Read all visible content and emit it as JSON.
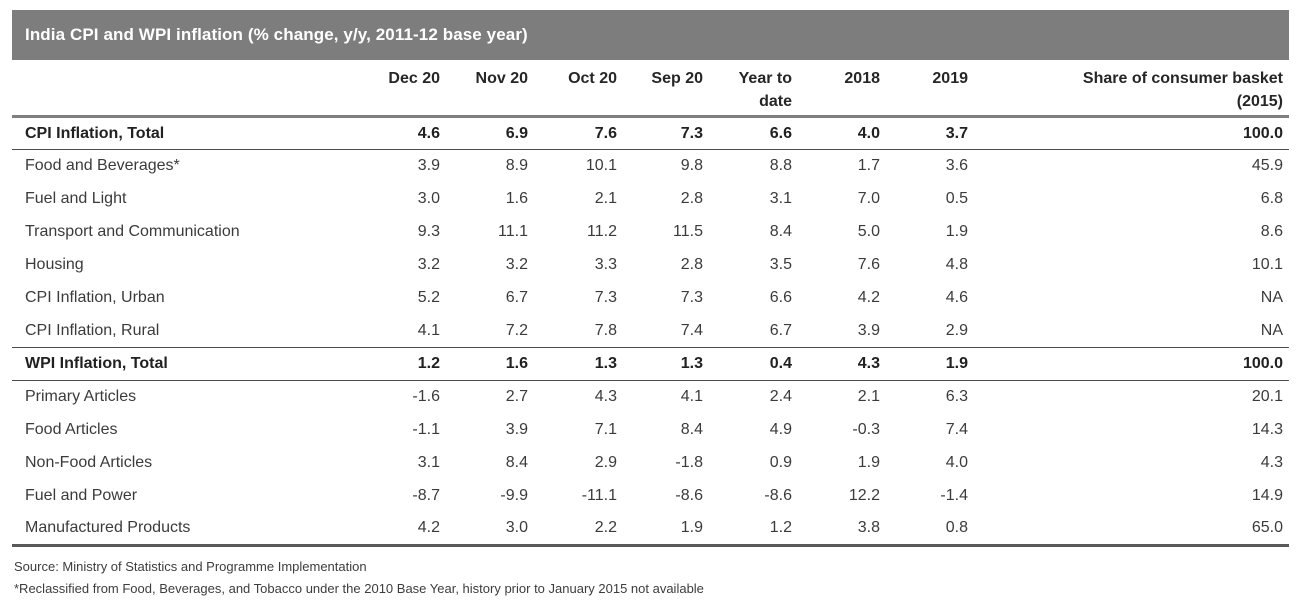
{
  "title_bar": {
    "title": "India CPI and WPI inflation (% change, y/y, 2011-12 base year)",
    "bg_color": "#7d7d7d",
    "text_color": "#ffffff"
  },
  "chart_data": {
    "type": "table",
    "title": "India CPI and WPI inflation (% change, y/y, 2011-12 base year)",
    "columns": [
      {
        "line1": "Dec 20",
        "line2": ""
      },
      {
        "line1": "Nov 20",
        "line2": ""
      },
      {
        "line1": "Oct 20",
        "line2": ""
      },
      {
        "line1": "Sep 20",
        "line2": ""
      },
      {
        "line1": "Year to",
        "line2": "date"
      },
      {
        "line1": "2018",
        "line2": ""
      },
      {
        "line1": "2019",
        "line2": ""
      },
      {
        "line1": "Share of consumer basket",
        "line2": "(2015)"
      }
    ],
    "rows": [
      {
        "label": "CPI Inflation, Total",
        "bold": true,
        "values": [
          "4.6",
          "6.9",
          "7.6",
          "7.3",
          "6.6",
          "4.0",
          "3.7",
          "100.0"
        ]
      },
      {
        "label": "Food and Beverages*",
        "bold": false,
        "values": [
          "3.9",
          "8.9",
          "10.1",
          "9.8",
          "8.8",
          "1.7",
          "3.6",
          "45.9"
        ]
      },
      {
        "label": "Fuel and Light",
        "bold": false,
        "values": [
          "3.0",
          "1.6",
          "2.1",
          "2.8",
          "3.1",
          "7.0",
          "0.5",
          "6.8"
        ]
      },
      {
        "label": "Transport and Communication",
        "bold": false,
        "values": [
          "9.3",
          "11.1",
          "11.2",
          "11.5",
          "8.4",
          "5.0",
          "1.9",
          "8.6"
        ]
      },
      {
        "label": "Housing",
        "bold": false,
        "values": [
          "3.2",
          "3.2",
          "3.3",
          "2.8",
          "3.5",
          "7.6",
          "4.8",
          "10.1"
        ]
      },
      {
        "label": "CPI Inflation, Urban",
        "bold": false,
        "values": [
          "5.2",
          "6.7",
          "7.3",
          "7.3",
          "6.6",
          "4.2",
          "4.6",
          "NA"
        ]
      },
      {
        "label": "CPI Inflation, Rural",
        "bold": false,
        "values": [
          "4.1",
          "7.2",
          "7.8",
          "7.4",
          "6.7",
          "3.9",
          "2.9",
          "NA"
        ]
      },
      {
        "label": "WPI Inflation, Total",
        "bold": true,
        "values": [
          "1.2",
          "1.6",
          "1.3",
          "1.3",
          "0.4",
          "4.3",
          "1.9",
          "100.0"
        ]
      },
      {
        "label": "Primary Articles",
        "bold": false,
        "values": [
          "-1.6",
          "2.7",
          "4.3",
          "4.1",
          "2.4",
          "2.1",
          "6.3",
          "20.1"
        ]
      },
      {
        "label": "Food Articles",
        "bold": false,
        "values": [
          "-1.1",
          "3.9",
          "7.1",
          "8.4",
          "4.9",
          "-0.3",
          "7.4",
          "14.3"
        ]
      },
      {
        "label": "Non-Food Articles",
        "bold": false,
        "values": [
          "3.1",
          "8.4",
          "2.9",
          "-1.8",
          "0.9",
          "1.9",
          "4.0",
          "4.3"
        ]
      },
      {
        "label": "Fuel and Power",
        "bold": false,
        "values": [
          "-8.7",
          "-9.9",
          "-11.1",
          "-8.6",
          "-8.6",
          "12.2",
          "-1.4",
          "14.9"
        ]
      },
      {
        "label": "Manufactured Products",
        "bold": false,
        "values": [
          "4.2",
          "3.0",
          "2.2",
          "1.9",
          "1.2",
          "3.8",
          "0.8",
          "65.0"
        ]
      }
    ],
    "layout_hints": {
      "header_rule_color": "#7f7f7f",
      "total_row_rule_color": "#4d4d4d",
      "bottom_rule_color": "#595959"
    }
  },
  "footnotes": {
    "source": "Source: Ministry of Statistics and Programme Implementation",
    "reclassified": "*Reclassified from Food, Beverages, and Tobacco under the 2010 Base Year, history prior to January 2015 not available"
  }
}
